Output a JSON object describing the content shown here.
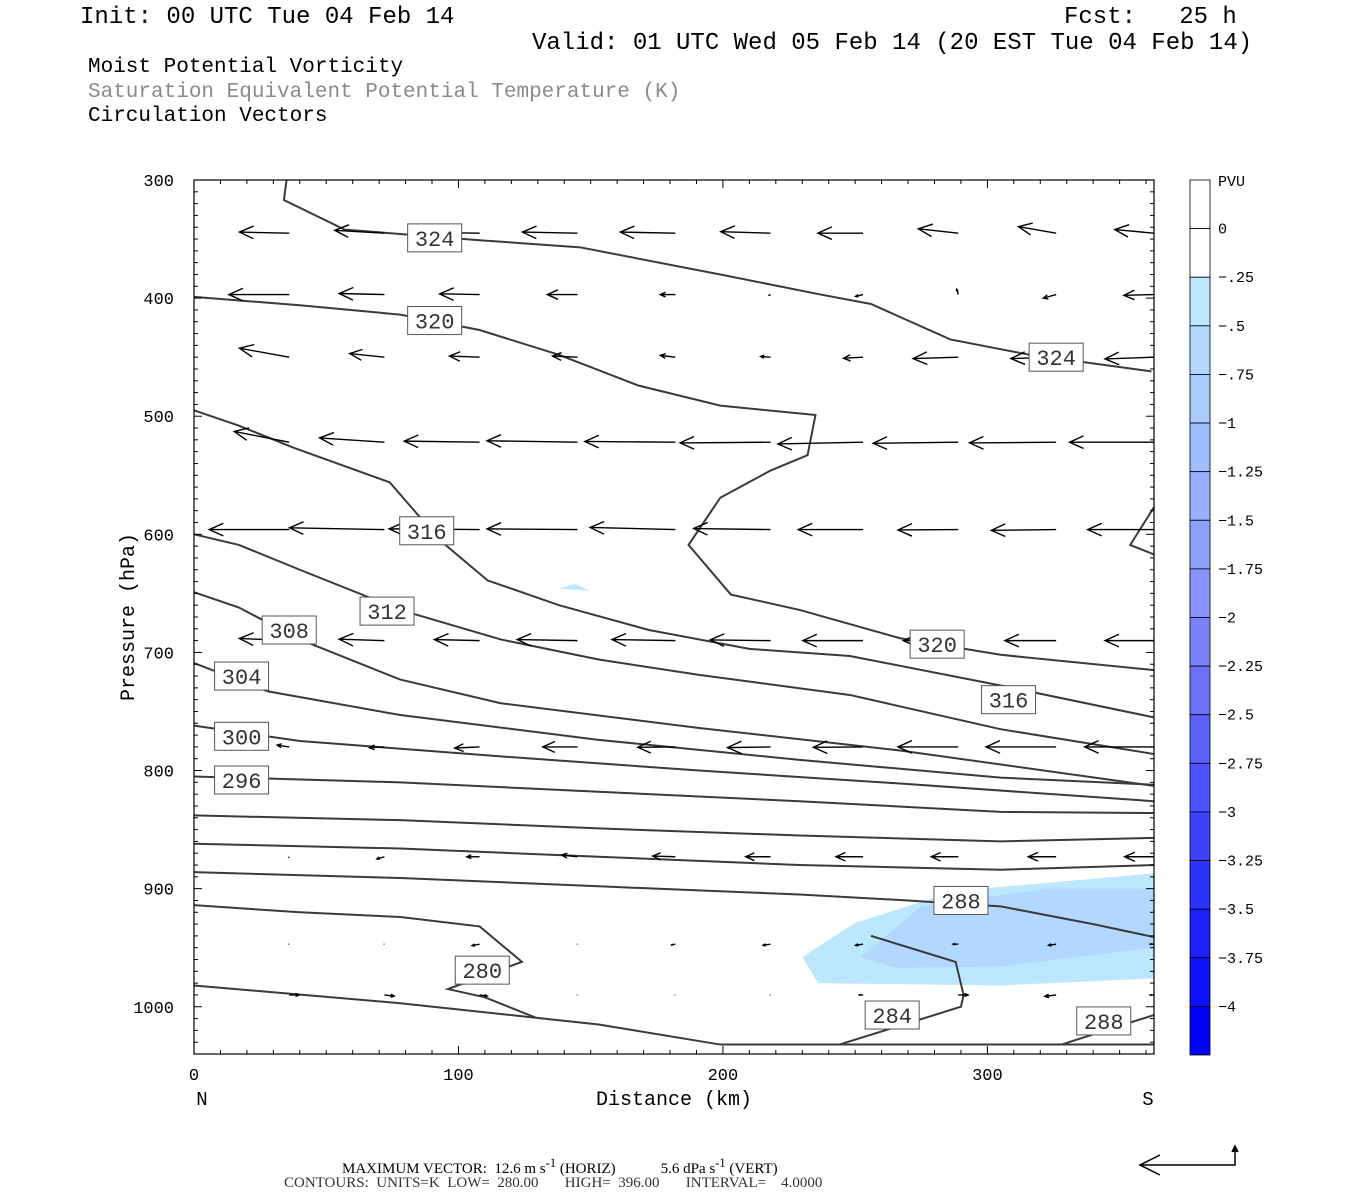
{
  "header": {
    "init": "Init: 00 UTC Tue 04 Feb 14",
    "fcst": "Fcst:   25 h",
    "valid": "Valid: 01 UTC Wed 05 Feb 14 (20 EST Tue 04 Feb 14)",
    "fields": [
      "Moist Potential Vorticity",
      "Saturation Equivalent Potential Temperature (K)",
      "Circulation Vectors"
    ]
  },
  "footer": {
    "max_vector_label": "MAXIMUM VECTOR:",
    "horiz": "12.6 m s",
    "horiz_sup": "-1",
    "horiz_tag": "(HORIZ)",
    "vert": "5.6 dPa s",
    "vert_sup": "-1",
    "vert_tag": "(VERT)",
    "contours": "CONTOURS:  UNITS=K  LOW=  280.00       HIGH=  396.00       INTERVAL=    4.0000"
  },
  "chart_data": {
    "type": "cross-section",
    "xlabel": "Distance (km)",
    "ylabel": "Pressure (hPa)",
    "xlim": [
      0,
      363
    ],
    "ylim": [
      300,
      1040
    ],
    "x_ticks": [
      0,
      100,
      200,
      300
    ],
    "y_ticks": [
      300,
      400,
      500,
      600,
      700,
      800,
      900,
      1000
    ],
    "x_end_labels": {
      "left": "N",
      "right": "S"
    },
    "colorbar": {
      "title": "PVU",
      "labels": [
        "0",
        "-.25",
        "-.5",
        "-.75",
        "-1",
        "-1.25",
        "-1.5",
        "-1.75",
        "-2",
        "-2.25",
        "-2.5",
        "-2.75",
        "-3",
        "-3.25",
        "-3.5",
        "-3.75",
        "-4"
      ],
      "colors": [
        "#ffffff",
        "#ffffff",
        "#bde6ff",
        "#b2d8ff",
        "#a8caff",
        "#a0bdff",
        "#98b0ff",
        "#90a2ff",
        "#8894ff",
        "#7a84ff",
        "#6a72ff",
        "#5c62ff",
        "#4c52ff",
        "#3c42ff",
        "#2c32ff",
        "#1c22ff",
        "#0c12ff",
        "#0000ff"
      ]
    },
    "pv_shading": [
      {
        "level": -0.25,
        "color": "#bde6ff",
        "points": [
          [
            230,
            958
          ],
          [
            250,
            929
          ],
          [
            288,
            902
          ],
          [
            363,
            887
          ],
          [
            363,
            976
          ],
          [
            305,
            982
          ],
          [
            236,
            980
          ]
        ]
      },
      {
        "level": -0.5,
        "color": "#b2d8ff",
        "points": [
          [
            252,
            958
          ],
          [
            275,
            915
          ],
          [
            323,
            900
          ],
          [
            363,
            900
          ],
          [
            363,
            950
          ],
          [
            305,
            966
          ],
          [
            265,
            967
          ]
        ]
      },
      {
        "level": -0.25,
        "color": "#bde6ff",
        "points": [
          [
            138,
            646
          ],
          [
            144,
            642
          ],
          [
            150,
            648
          ]
        ]
      }
    ],
    "theta_es_contours": [
      {
        "level": 324,
        "points": [
          [
            35,
            300
          ],
          [
            34,
            317
          ],
          [
            57,
            342
          ],
          [
            108,
            351
          ],
          [
            146,
            357
          ],
          [
            199,
            380
          ],
          [
            237,
            397
          ],
          [
            256,
            405
          ],
          [
            286,
            435
          ],
          [
            316,
            448
          ],
          [
            362,
            462
          ]
        ]
      },
      {
        "level": 320,
        "points": [
          [
            0,
            399
          ],
          [
            40,
            406
          ],
          [
            78,
            414
          ],
          [
            108,
            427
          ],
          [
            138,
            448
          ],
          [
            168,
            474
          ],
          [
            199,
            491
          ],
          [
            235,
            499
          ],
          [
            232,
            533
          ],
          [
            218,
            546
          ],
          [
            199,
            569
          ],
          [
            187,
            609
          ],
          [
            203,
            651
          ],
          [
            229,
            664
          ],
          [
            267,
            688
          ],
          [
            305,
            702
          ],
          [
            363,
            715
          ]
        ]
      },
      {
        "level": 320,
        "points": [
          [
            363,
            577
          ],
          [
            354,
            609
          ],
          [
            363,
            617
          ]
        ]
      },
      {
        "level": 316,
        "points": [
          [
            0,
            495
          ],
          [
            17,
            508
          ],
          [
            38,
            527
          ],
          [
            74,
            556
          ],
          [
            93,
            605
          ],
          [
            111,
            639
          ],
          [
            138,
            660
          ],
          [
            172,
            681
          ],
          [
            210,
            697
          ],
          [
            248,
            703
          ],
          [
            305,
            728
          ],
          [
            363,
            755
          ]
        ]
      },
      {
        "level": 312,
        "points": [
          [
            0,
            600
          ],
          [
            17,
            609
          ],
          [
            40,
            630
          ],
          [
            78,
            664
          ],
          [
            116,
            689
          ],
          [
            153,
            706
          ],
          [
            191,
            719
          ],
          [
            248,
            736
          ],
          [
            305,
            765
          ],
          [
            363,
            786
          ]
        ]
      },
      {
        "level": 308,
        "points": [
          [
            0,
            649
          ],
          [
            17,
            662
          ],
          [
            40,
            689
          ],
          [
            78,
            723
          ],
          [
            116,
            743
          ],
          [
            191,
            764
          ],
          [
            267,
            783
          ],
          [
            363,
            813
          ]
        ]
      },
      {
        "level": 304,
        "points": [
          [
            0,
            709
          ],
          [
            28,
            733
          ],
          [
            78,
            753
          ],
          [
            153,
            774
          ],
          [
            229,
            791
          ],
          [
            305,
            806
          ],
          [
            363,
            812
          ]
        ]
      },
      {
        "level": 300,
        "points": [
          [
            0,
            762
          ],
          [
            40,
            775
          ],
          [
            116,
            788
          ],
          [
            191,
            800
          ],
          [
            267,
            811
          ],
          [
            363,
            826
          ]
        ]
      },
      {
        "level": 296,
        "points": [
          [
            0,
            805
          ],
          [
            78,
            810
          ],
          [
            153,
            818
          ],
          [
            229,
            826
          ],
          [
            305,
            835
          ],
          [
            363,
            836
          ]
        ]
      },
      {
        "level": 292,
        "points": [
          [
            0,
            838
          ],
          [
            78,
            842
          ],
          [
            153,
            849
          ],
          [
            229,
            855
          ],
          [
            305,
            860
          ],
          [
            363,
            857
          ]
        ]
      },
      {
        "level": 292,
        "points": [
          [
            0,
            862
          ],
          [
            78,
            866
          ],
          [
            153,
            873
          ],
          [
            229,
            880
          ],
          [
            305,
            884
          ],
          [
            363,
            880
          ]
        ]
      },
      {
        "level": 288,
        "points": [
          [
            0,
            886
          ],
          [
            78,
            891
          ],
          [
            153,
            898
          ],
          [
            229,
            905
          ],
          [
            270,
            910
          ],
          [
            305,
            915
          ],
          [
            340,
            930
          ],
          [
            363,
            941
          ]
        ]
      },
      {
        "level": 284,
        "points": [
          [
            0,
            914
          ],
          [
            40,
            920
          ],
          [
            78,
            924
          ],
          [
            108,
            932
          ],
          [
            124,
            962
          ],
          [
            96,
            985
          ],
          [
            110,
            992
          ],
          [
            129,
            1009
          ]
        ]
      },
      {
        "level": 284,
        "points": [
          [
            0,
            982
          ],
          [
            78,
            997
          ],
          [
            153,
            1015
          ],
          [
            199,
            1032
          ],
          [
            363,
            1032
          ]
        ]
      },
      {
        "level": 284,
        "points": [
          [
            244,
            1032
          ],
          [
            290,
            1000
          ],
          [
            291,
            990
          ],
          [
            288,
            962
          ],
          [
            256,
            940
          ]
        ]
      },
      {
        "level": 288,
        "points": [
          [
            328,
            1032
          ],
          [
            363,
            1007
          ]
        ]
      }
    ],
    "contour_labels": [
      {
        "text": "324",
        "x": 91,
        "hPa": 349
      },
      {
        "text": "320",
        "x": 91,
        "hPa": 419
      },
      {
        "text": "324",
        "x": 326,
        "hPa": 450
      },
      {
        "text": "316",
        "x": 88,
        "hPa": 597
      },
      {
        "text": "312",
        "x": 73,
        "hPa": 665
      },
      {
        "text": "308",
        "x": 36,
        "hPa": 681
      },
      {
        "text": "320",
        "x": 281,
        "hPa": 693
      },
      {
        "text": "304",
        "x": 18,
        "hPa": 720
      },
      {
        "text": "316",
        "x": 308,
        "hPa": 740
      },
      {
        "text": "300",
        "x": 18,
        "hPa": 771
      },
      {
        "text": "296",
        "x": 18,
        "hPa": 808
      },
      {
        "text": "288",
        "x": 290,
        "hPa": 910
      },
      {
        "text": "280",
        "x": 109,
        "hPa": 969
      },
      {
        "text": "284",
        "x": 264,
        "hPa": 1007
      },
      {
        "text": "288",
        "x": 344,
        "hPa": 1012
      }
    ],
    "vectors": {
      "units": {
        "horiz": "m s-1",
        "vert": "dPa s-1"
      },
      "max_horiz": 12.6,
      "max_vert": 5.6,
      "x": [
        36,
        72,
        108,
        145,
        182,
        218,
        253,
        289,
        326,
        363
      ],
      "rows": [
        {
          "hPa": 345,
          "u": [
            -6.6,
            -6.6,
            -6.6,
            -7.3,
            -7.3,
            -6.6,
            -6.0,
            -5.3,
            -5.0,
            -5.2
          ],
          "w": [
            -0.3,
            -0.8,
            -0.2,
            -0.3,
            -0.3,
            -0.4,
            0,
            -1.2,
            -1.8,
            -1.0
          ]
        },
        {
          "hPa": 397,
          "u": [
            -8.0,
            -6.0,
            -5.3,
            -4.0,
            -2.0,
            -0.3,
            -1.0,
            -0.2,
            -1.7,
            -4.0
          ],
          "w": [
            0,
            -0.3,
            -0.2,
            0,
            0,
            0.3,
            0.5,
            -1.5,
            1.0,
            0.2
          ]
        },
        {
          "hPa": 450,
          "u": [
            -6.6,
            -4.6,
            -4.0,
            -3.3,
            -2.0,
            -1.3,
            -2.6,
            -6.0,
            -6.0,
            -6.5
          ],
          "w": [
            -2.5,
            -1.0,
            -0.3,
            -0.3,
            -0.5,
            -0.2,
            0.3,
            0.4,
            0.4,
            0.5
          ]
        },
        {
          "hPa": 522,
          "u": [
            -7.3,
            -8.6,
            -10.0,
            -12.0,
            -12.0,
            -12.0,
            -11.3,
            -11.3,
            -11.5,
            -11.2
          ],
          "w": [
            -3.0,
            -1.2,
            -0.3,
            -0.4,
            -0.2,
            0.2,
            0.5,
            0.3,
            0.2,
            0
          ]
        },
        {
          "hPa": 596,
          "u": [
            -10.6,
            -12.6,
            -12.0,
            -12.0,
            -11.3,
            -10.2,
            -8.6,
            -8.0,
            -8.6,
            -8.8
          ],
          "w": [
            0,
            -0.5,
            -0.2,
            -0.2,
            -0.6,
            -0.3,
            0,
            0.1,
            0.2,
            0
          ]
        },
        {
          "hPa": 690,
          "u": [
            -6.6,
            -6.0,
            -6.0,
            -8.0,
            -8.4,
            -8.0,
            -8.0,
            -7.3,
            -6.8,
            -6.5
          ],
          "w": [
            -0.6,
            -0.4,
            -0.3,
            -0.3,
            -0.3,
            -0.2,
            0,
            0,
            0,
            0
          ]
        },
        {
          "hPa": 780,
          "u": [
            -1.6,
            -2.0,
            -3.3,
            -4.6,
            -5.0,
            -5.7,
            -6.6,
            -8.0,
            -9.3,
            -9.2
          ],
          "w": [
            -0.5,
            0.2,
            0.3,
            0,
            0.1,
            0.2,
            0.1,
            0,
            0,
            0
          ]
        },
        {
          "hPa": 873,
          "u": [
            -0.1,
            -1.0,
            -1.7,
            -2.1,
            -3.0,
            -3.3,
            -3.6,
            -3.6,
            -3.7,
            -3.9
          ],
          "w": [
            0.3,
            0.6,
            0,
            -0.5,
            -0.2,
            0,
            0,
            0,
            0,
            0
          ]
        },
        {
          "hPa": 947,
          "u": [
            -0.1,
            -0.1,
            -1.0,
            -0.1,
            -0.5,
            -1.0,
            -1.0,
            -0.7,
            -1.0,
            -0.5
          ],
          "w": [
            0,
            0,
            0.4,
            0,
            0.2,
            0.3,
            0.3,
            0,
            0.3,
            0
          ]
        },
        {
          "hPa": 990,
          "u": [
            1.3,
            1.3,
            1.0,
            -0.1,
            -0.1,
            -0.1,
            -0.5,
            1.3,
            -1.5,
            -0.5
          ],
          "w": [
            0,
            0.3,
            0.3,
            0,
            0,
            0,
            0,
            0,
            0.4,
            0
          ]
        }
      ]
    }
  }
}
